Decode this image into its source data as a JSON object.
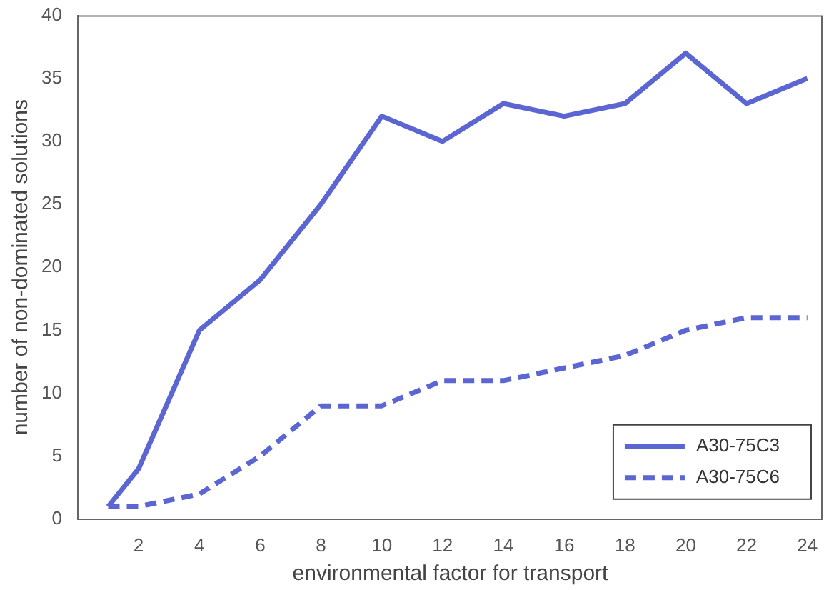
{
  "chart_data": {
    "type": "line",
    "xlabel": "environmental factor for transport",
    "ylabel": "number of non-dominated solutions",
    "x": [
      1,
      2,
      4,
      6,
      8,
      10,
      12,
      14,
      16,
      18,
      20,
      22,
      24
    ],
    "series": [
      {
        "name": "A30-75C3",
        "color": "#5b66d2",
        "line_style": "solid",
        "values": [
          1,
          4,
          15,
          19,
          25,
          32,
          30,
          33,
          32,
          33,
          37,
          33,
          35
        ]
      },
      {
        "name": "A30-75C6",
        "color": "#5b66d2",
        "line_style": "dashed",
        "values": [
          1,
          1,
          2,
          5,
          9,
          9,
          11,
          11,
          12,
          13,
          15,
          16,
          16
        ]
      }
    ],
    "xlim": [
      0,
      24.5
    ],
    "xticks": [
      2,
      4,
      6,
      8,
      10,
      12,
      14,
      16,
      18,
      20,
      22,
      24
    ],
    "ylim": [
      0,
      40
    ],
    "yticks": [
      0,
      5,
      10,
      15,
      20,
      25,
      30,
      35,
      40
    ],
    "grid": false,
    "legend": "bottom right",
    "marker": "none"
  }
}
